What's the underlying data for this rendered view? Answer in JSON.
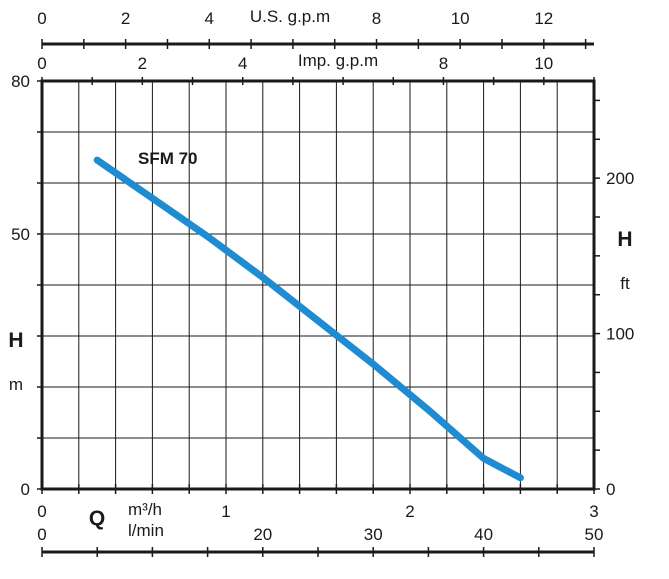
{
  "chart_data": {
    "type": "line",
    "series": [
      {
        "name": "SFM 70",
        "x_m3h": [
          0.3,
          0.6,
          0.9,
          1.2,
          1.5,
          1.8,
          2.1,
          2.4,
          2.6
        ],
        "y_m": [
          64.5,
          57,
          49.5,
          41.5,
          33,
          24.5,
          15.5,
          6,
          2.2
        ]
      }
    ],
    "axes": {
      "left": {
        "label": "H",
        "unit": "m",
        "min": 0,
        "max": 80,
        "tick_values": [
          0,
          50,
          80
        ],
        "tick_labels": [
          "0",
          "50",
          "80"
        ]
      },
      "right": {
        "label": "H",
        "unit": "ft",
        "min": 0,
        "max": 262.5,
        "tick_values": [
          0,
          100,
          200
        ],
        "tick_labels": [
          "0",
          "100",
          "200"
        ]
      },
      "bottom_primary": {
        "label": "Q",
        "unit": "m³/h",
        "min": 0,
        "max": 3,
        "tick_values": [
          0,
          1,
          2,
          3
        ],
        "tick_labels": [
          "0",
          "1",
          "2",
          "3"
        ]
      },
      "bottom_secondary": {
        "unit": "l/min",
        "min": 0,
        "max": 50,
        "tick_values": [
          0,
          20,
          30,
          40,
          50
        ],
        "tick_labels": [
          "0",
          "20",
          "30",
          "40",
          "50"
        ]
      },
      "top_us": {
        "unit": "U.S. g.p.m",
        "min": 0,
        "max": 13.2,
        "tick_values": [
          0,
          2,
          4,
          8,
          10,
          12
        ],
        "tick_labels": [
          "0",
          "2",
          "4",
          "8",
          "10",
          "12"
        ]
      },
      "top_imp": {
        "unit": "Imp. g.p.m",
        "min": 0,
        "max": 11,
        "tick_values": [
          0,
          2,
          4,
          8,
          10
        ],
        "tick_labels": [
          "0",
          "2",
          "4",
          "8",
          "10"
        ]
      }
    },
    "grid": true,
    "line_color": "#1f8bd0"
  }
}
